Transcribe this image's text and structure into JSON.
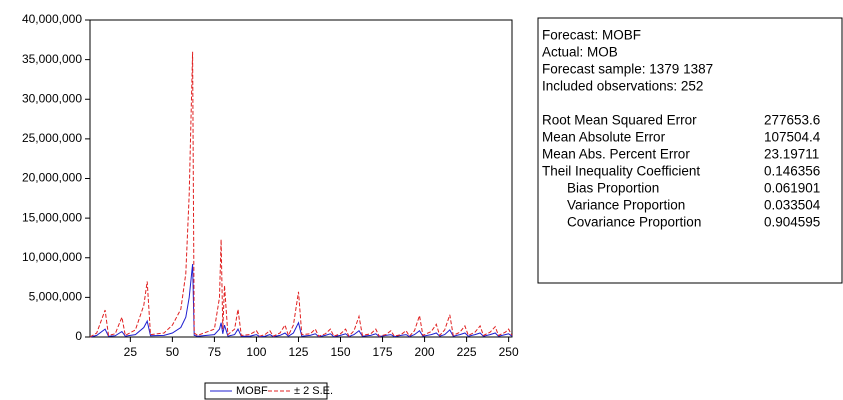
{
  "chart_data": {
    "type": "line",
    "x": [
      1,
      5,
      10,
      12,
      16,
      20,
      22,
      28,
      33,
      35,
      37,
      45,
      50,
      55,
      58,
      60,
      62,
      63,
      65,
      75,
      78,
      79,
      80,
      81,
      83,
      87,
      89,
      91,
      96,
      100,
      102,
      105,
      108,
      110,
      114,
      117,
      119,
      122,
      125,
      127,
      132,
      135,
      137,
      141,
      144,
      146,
      150,
      153,
      155,
      158,
      161,
      163,
      168,
      171,
      173,
      177,
      180,
      182,
      186,
      189,
      191,
      194,
      197,
      199,
      204,
      207,
      209,
      212,
      215,
      217,
      221,
      224,
      226,
      230,
      233,
      235,
      239,
      242,
      244,
      248,
      250,
      252
    ],
    "series": [
      {
        "name": "MOBF",
        "color": "#1f1fd0",
        "values": [
          0,
          200000,
          1000000,
          100000,
          150000,
          700000,
          100000,
          300000,
          1200000,
          2000000,
          150000,
          200000,
          500000,
          1200000,
          2500000,
          5000000,
          9200000,
          200000,
          100000,
          300000,
          1000000,
          1800000,
          400000,
          1500000,
          100000,
          300000,
          1000000,
          100000,
          100000,
          300000,
          50000,
          100000,
          300000,
          50000,
          200000,
          500000,
          100000,
          500000,
          1800000,
          100000,
          200000,
          400000,
          50000,
          200000,
          400000,
          50000,
          200000,
          400000,
          50000,
          300000,
          800000,
          100000,
          200000,
          400000,
          50000,
          200000,
          300000,
          50000,
          200000,
          300000,
          50000,
          300000,
          800000,
          100000,
          300000,
          500000,
          100000,
          300000,
          900000,
          100000,
          300000,
          500000,
          100000,
          300000,
          500000,
          100000,
          300000,
          500000,
          100000,
          300000,
          400000,
          100000
        ]
      },
      {
        "name": "± 2 S.E.",
        "color": "#e02020",
        "dashed": true,
        "values": [
          0,
          500000,
          3400000,
          200000,
          400000,
          2500000,
          200000,
          900000,
          4000000,
          7000000,
          300000,
          500000,
          1500000,
          3500000,
          8000000,
          18000000,
          36000000,
          500000,
          200000,
          1000000,
          5000000,
          12300000,
          1000000,
          6500000,
          300000,
          1000000,
          3500000,
          200000,
          300000,
          800000,
          100000,
          300000,
          800000,
          100000,
          500000,
          1500000,
          200000,
          1500000,
          5700000,
          300000,
          400000,
          1000000,
          100000,
          400000,
          1000000,
          100000,
          400000,
          1000000,
          100000,
          800000,
          2600000,
          200000,
          400000,
          1000000,
          100000,
          300000,
          800000,
          100000,
          300000,
          800000,
          100000,
          800000,
          2700000,
          200000,
          700000,
          1600000,
          200000,
          900000,
          2800000,
          200000,
          600000,
          1400000,
          200000,
          600000,
          1400000,
          200000,
          600000,
          1300000,
          200000,
          600000,
          1000000,
          200000
        ]
      }
    ],
    "xlim": [
      1,
      252
    ],
    "xticks": [
      25,
      50,
      75,
      100,
      125,
      150,
      175,
      200,
      225,
      250
    ],
    "ylim": [
      0,
      40000000
    ],
    "yticks": [
      0,
      {
        "value": 5000000,
        "label": "5,000,000"
      },
      {
        "value": 10000000,
        "label": "10,000,000"
      },
      {
        "value": 15000000,
        "label": "15,000,000"
      },
      {
        "value": 20000000,
        "label": "20,000,000"
      },
      {
        "value": 25000000,
        "label": "25,000,000"
      },
      {
        "value": 30000000,
        "label": "30,000,000"
      },
      {
        "value": 35000000,
        "label": "35,000,000"
      },
      {
        "value": 40000000,
        "label": "40,000,000"
      }
    ]
  },
  "stats": {
    "info": [
      "Forecast: MOBF",
      "Actual: MOB",
      "Forecast sample: 1379 1387",
      "Included observations: 252"
    ],
    "rows": [
      [
        "Root Mean Squared Error",
        "277653.6"
      ],
      [
        "Mean Absolute Error",
        "107504.4"
      ],
      [
        "Mean Abs. Percent Error",
        "23.19711"
      ],
      [
        "Theil Inequality Coefficient",
        "0.146356"
      ],
      [
        "Bias Proportion",
        "0.061901"
      ],
      [
        "Variance Proportion",
        "0.033504"
      ],
      [
        "Covariance Proportion",
        "0.904595"
      ]
    ]
  }
}
